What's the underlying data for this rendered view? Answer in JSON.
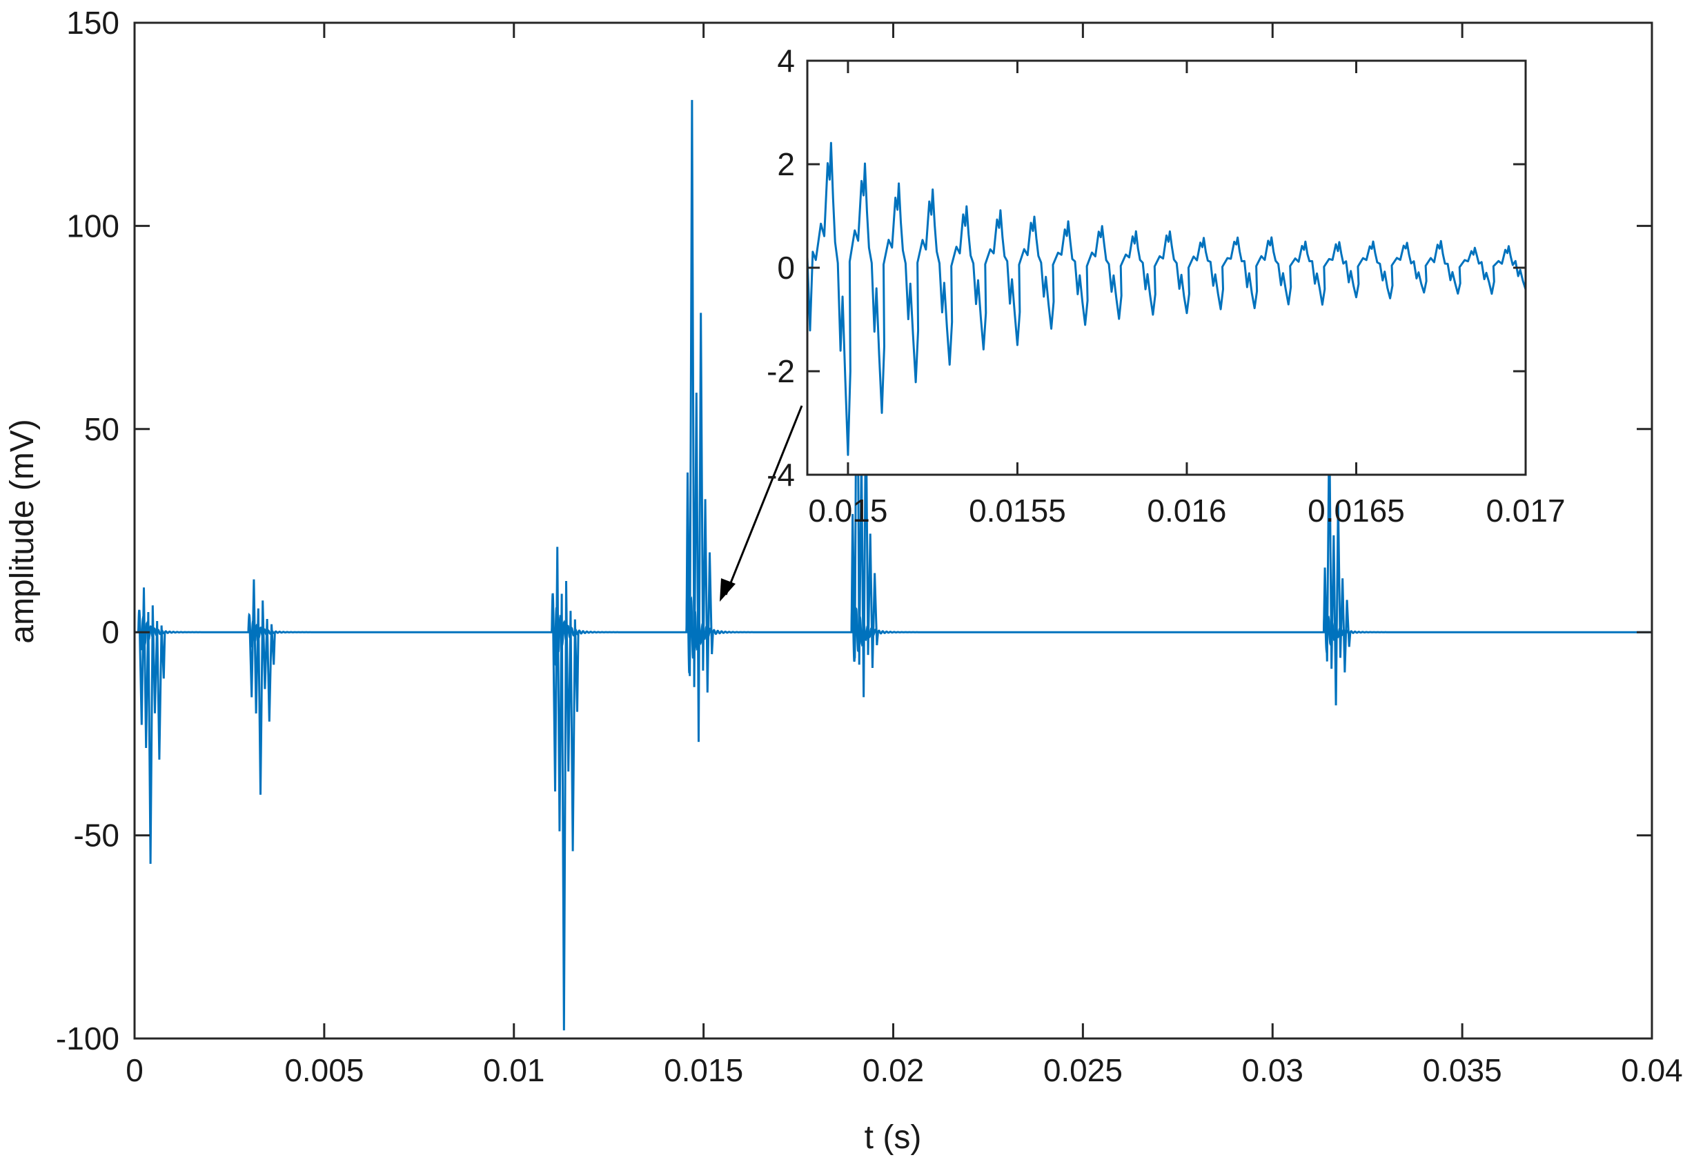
{
  "chart_data": [
    {
      "id": "main",
      "type": "line",
      "xlabel": "t (s)",
      "ylabel": "amplitude (mV)",
      "xlim": [
        0,
        0.04
      ],
      "ylim": [
        -100,
        150
      ],
      "xticks": [
        0,
        0.005,
        0.01,
        0.015,
        0.02,
        0.025,
        0.03,
        0.035,
        0.04
      ],
      "xtick_labels": [
        "0",
        "0.005",
        "0.01",
        "0.015",
        "0.02",
        "0.025",
        "0.03",
        "0.035",
        "0.04"
      ],
      "yticks": [
        -100,
        -50,
        0,
        50,
        100,
        150
      ],
      "ytick_labels": [
        "-100",
        "-50",
        "0",
        "50",
        "100",
        "150"
      ],
      "grid": false,
      "line_color": "#0072BD",
      "series": [
        {
          "bursts": [
            {
              "t": 0.0001,
              "max": 11,
              "min": -57
            },
            {
              "t": 0.003,
              "max": 13,
              "min": -40
            },
            {
              "t": 0.011,
              "max": 21,
              "min": -98
            },
            {
              "t": 0.01455,
              "max": 131,
              "min": -27
            },
            {
              "t": 0.0189,
              "max": 97,
              "min": -16
            },
            {
              "t": 0.03135,
              "max": 53,
              "min": -18
            }
          ]
        }
      ]
    },
    {
      "id": "inset",
      "type": "line",
      "xlim": [
        0.01488,
        0.017
      ],
      "ylim": [
        -4,
        4
      ],
      "xticks": [
        0.015,
        0.0155,
        0.016,
        0.0165,
        0.017
      ],
      "xtick_labels": [
        "0.015",
        "0.0155",
        "0.016",
        "0.0165",
        "0.017"
      ],
      "yticks": [
        -4,
        -2,
        0,
        2,
        4
      ],
      "ytick_labels": [
        "-4",
        "-2",
        "0",
        "2",
        "4"
      ],
      "grid": false,
      "line_color": "#0072BD",
      "annotation": "arrow from inset to the decay after the spike near t = 0.0155 s",
      "series": [
        {
          "peak_times": [
            0.01495,
            0.01505,
            0.01515,
            0.01525,
            0.01535,
            0.01545,
            0.01555,
            0.01565,
            0.01575,
            0.01585,
            0.01595,
            0.01605,
            0.01615,
            0.01625,
            0.01635,
            0.01645,
            0.01655,
            0.01665,
            0.01675,
            0.01685,
            0.01695
          ],
          "peak_max": [
            2.4,
            2.0,
            1.6,
            1.5,
            1.2,
            1.1,
            1.0,
            0.9,
            0.8,
            0.7,
            0.7,
            0.6,
            0.6,
            0.6,
            0.5,
            0.5,
            0.5,
            0.5,
            0.5,
            0.4,
            0.4
          ],
          "trough_min": [
            -3.6,
            -2.8,
            -2.2,
            -1.9,
            -1.6,
            -1.5,
            -1.2,
            -1.1,
            -1.0,
            -0.9,
            -0.9,
            -0.8,
            -0.8,
            -0.7,
            -0.7,
            -0.6,
            -0.6,
            -0.5,
            -0.5,
            -0.5,
            -0.4
          ]
        }
      ]
    }
  ]
}
